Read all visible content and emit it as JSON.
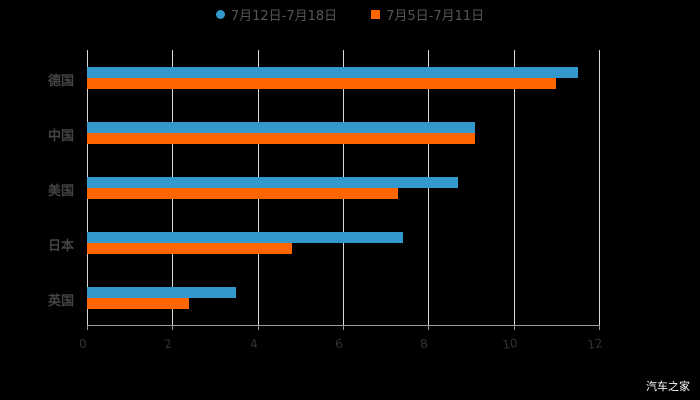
{
  "chart_data": {
    "type": "bar",
    "orientation": "horizontal",
    "title": "",
    "xlabel": "",
    "ylabel": "",
    "categories": [
      "德国",
      "中国",
      "美国",
      "日本",
      "英国"
    ],
    "series": [
      {
        "name": "7月12日-7月18日",
        "color": "#3399cc",
        "values": [
          11.5,
          9.1,
          8.7,
          7.4,
          3.5
        ]
      },
      {
        "name": "7月5日-7月11日",
        "color": "#ff6600",
        "values": [
          11.0,
          9.1,
          7.3,
          4.8,
          2.4
        ]
      }
    ],
    "xlim": [
      0,
      12
    ],
    "xticks": [
      "0",
      "2",
      "4",
      "6",
      "8",
      "10",
      "12"
    ],
    "grid": true,
    "legend_position": "top"
  },
  "legend": [
    {
      "label": "7月12日-7月18日",
      "color": "#3399cc",
      "marker": "circle"
    },
    {
      "label": "7月5日-7月11日",
      "color": "#ff6600",
      "marker": "square"
    }
  ],
  "watermark": "汽车之家"
}
